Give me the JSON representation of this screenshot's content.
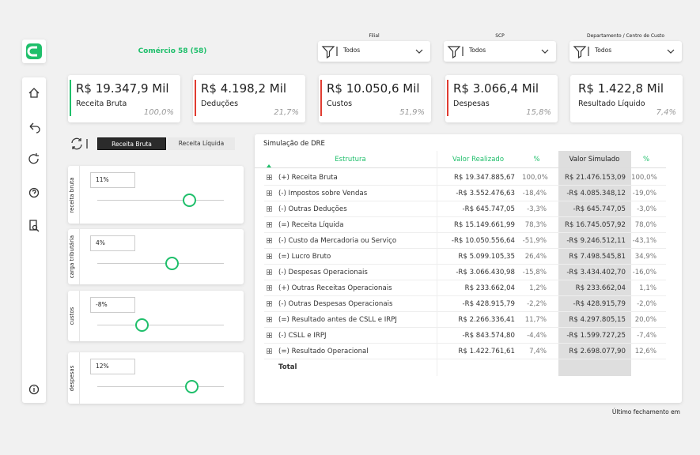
{
  "header": {
    "company": "Comércio 58 (58)"
  },
  "filters": [
    {
      "label": "Filial",
      "value": "Todos"
    },
    {
      "label": "SCP",
      "value": "Todos"
    },
    {
      "label": "Departamento / Centro de Custo",
      "value": "Todos"
    }
  ],
  "kpis": [
    {
      "value": "R$ 19.347,9 Mil",
      "label": "Receita Bruta",
      "percent": "100,0%"
    },
    {
      "value": "R$ 4.198,2 Mil",
      "label": "Deduções",
      "percent": "21,7%"
    },
    {
      "value": "R$ 10.050,6 Mil",
      "label": "Custos",
      "percent": "51,9%"
    },
    {
      "value": "R$ 3.066,4 Mil",
      "label": "Despesas",
      "percent": "15,8%"
    },
    {
      "value": "R$ 1.422,8 Mil",
      "label": "Resultado Líquido",
      "percent": "7,4%"
    }
  ],
  "toggle": [
    "Receita Bruta",
    "Receita Líquida"
  ],
  "sliders": [
    {
      "label": "receita bruta",
      "value": "11%"
    },
    {
      "label": "carga tributária",
      "value": "4%"
    },
    {
      "label": "custos",
      "value": "-8%"
    },
    {
      "label": "despesas",
      "value": "12%"
    }
  ],
  "dre": {
    "title": "Simulação de DRE",
    "columns": [
      "Estrutura",
      "Valor Realizado",
      "%",
      "Valor Simulado",
      "%"
    ],
    "rows": [
      [
        "(+) Receita Bruta",
        "R$ 19.347.885,67",
        "100,0%",
        "R$ 21.476.153,09",
        "100,0%"
      ],
      [
        "(-) Impostos sobre Vendas",
        "-R$ 3.552.476,63",
        "-18,4%",
        "-R$ 4.085.348,12",
        "-19,0%"
      ],
      [
        "(-) Outras Deduções",
        "-R$ 645.747,05",
        "-3,3%",
        "-R$ 645.747,05",
        "-3,0%"
      ],
      [
        "(=) Receita Líquida",
        "R$ 15.149.661,99",
        "78,3%",
        "R$ 16.745.057,92",
        "78,0%"
      ],
      [
        "(-) Custo da Mercadoria ou Serviço",
        "-R$ 10.050.556,64",
        "-51,9%",
        "-R$ 9.246.512,11",
        "-43,1%"
      ],
      [
        "(=) Lucro Bruto",
        "R$ 5.099.105,35",
        "26,4%",
        "R$ 7.498.545,81",
        "34,9%"
      ],
      [
        "(-) Despesas Operacionais",
        "-R$ 3.066.430,98",
        "-15,8%",
        "-R$ 3.434.402,70",
        "-16,0%"
      ],
      [
        "(+) Outras Receitas Operacionais",
        "R$ 233.662,04",
        "1,2%",
        "R$ 233.662,04",
        "1,1%"
      ],
      [
        "(-) Outras Despesas Operacionais",
        "-R$ 428.915,79",
        "-2,2%",
        "-R$ 428.915,79",
        "-2,0%"
      ],
      [
        "(=) Resultado antes de CSLL e IRPJ",
        "R$ 2.266.336,41",
        "11,7%",
        "R$ 4.297.805,15",
        "20,0%"
      ],
      [
        "(-) CSLL e IRPJ",
        "-R$ 843.574,80",
        "-4,4%",
        "-R$ 1.599.727,25",
        "-7,4%"
      ],
      [
        "(=) Resultado Operacional",
        "R$ 1.422.761,61",
        "7,4%",
        "R$ 2.698.077,90",
        "12,6%"
      ]
    ],
    "total": "Total"
  },
  "footer": "Último fechamento em"
}
